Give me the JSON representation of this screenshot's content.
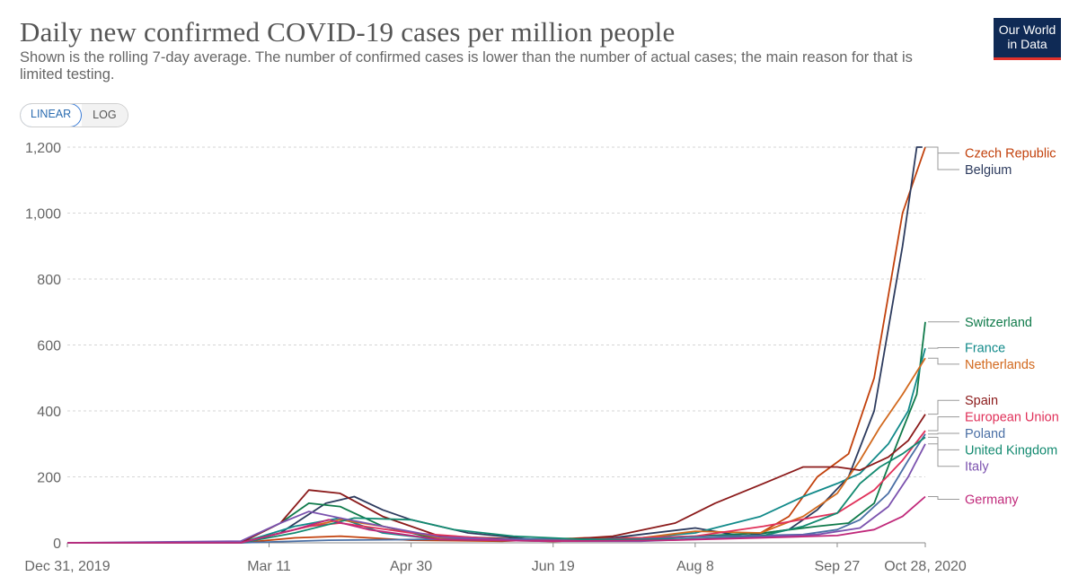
{
  "header": {
    "title": "Daily new confirmed COVID-19 cases per million people",
    "subtitle": "Shown is the rolling 7-day average. The number of confirmed cases is lower than the number of actual cases; the main reason for that is limited testing.",
    "logo_line1": "Our World",
    "logo_line2": "in Data"
  },
  "controls": {
    "linear_label": "LINEAR",
    "log_label": "LOG",
    "active": "LINEAR"
  },
  "chart_data": {
    "type": "line",
    "title": "Daily new confirmed COVID-19 cases per million people",
    "xlabel": "",
    "ylabel": "",
    "scale": "linear",
    "grid": "horizontal dashed",
    "legend_placement": "right, line-end labels",
    "ylim": [
      0,
      1200
    ],
    "xlim": [
      "2019-12-31",
      "2020-10-28"
    ],
    "y_ticks": [
      0,
      200,
      400,
      600,
      800,
      1000,
      1200
    ],
    "y_tick_labels": [
      "0",
      "200",
      "400",
      "600",
      "800",
      "1,000",
      "1,200"
    ],
    "x_ticks": [
      "2019-12-31",
      "2020-03-11",
      "2020-04-30",
      "2020-06-19",
      "2020-08-08",
      "2020-09-27",
      "2020-10-28"
    ],
    "x_tick_labels": [
      "Dec 31, 2019",
      "Mar 11",
      "Apr 30",
      "Jun 19",
      "Aug 8",
      "Sep 27",
      "Oct 28, 2020"
    ],
    "series": [
      {
        "name": "Czech Republic",
        "color": "#c2410c",
        "points": [
          [
            "2019-12-31",
            0
          ],
          [
            "2020-03-01",
            0
          ],
          [
            "2020-03-20",
            15
          ],
          [
            "2020-04-05",
            20
          ],
          [
            "2020-04-30",
            8
          ],
          [
            "2020-06-01",
            5
          ],
          [
            "2020-06-30",
            15
          ],
          [
            "2020-07-31",
            15
          ],
          [
            "2020-08-31",
            30
          ],
          [
            "2020-09-10",
            80
          ],
          [
            "2020-09-20",
            200
          ],
          [
            "2020-10-01",
            270
          ],
          [
            "2020-10-10",
            500
          ],
          [
            "2020-10-20",
            1000
          ],
          [
            "2020-10-28",
            1200
          ]
        ]
      },
      {
        "name": "Belgium",
        "color": "#2d3b5e",
        "points": [
          [
            "2019-12-31",
            0
          ],
          [
            "2020-03-01",
            0
          ],
          [
            "2020-03-15",
            30
          ],
          [
            "2020-03-31",
            120
          ],
          [
            "2020-04-10",
            140
          ],
          [
            "2020-04-20",
            100
          ],
          [
            "2020-04-30",
            70
          ],
          [
            "2020-05-20",
            30
          ],
          [
            "2020-06-15",
            8
          ],
          [
            "2020-07-05",
            10
          ],
          [
            "2020-08-08",
            45
          ],
          [
            "2020-08-25",
            20
          ],
          [
            "2020-09-10",
            40
          ],
          [
            "2020-09-20",
            100
          ],
          [
            "2020-10-01",
            200
          ],
          [
            "2020-10-10",
            400
          ],
          [
            "2020-10-20",
            900
          ],
          [
            "2020-10-25",
            1200
          ],
          [
            "2020-10-27",
            1200
          ]
        ]
      },
      {
        "name": "Switzerland",
        "color": "#0f7a4a",
        "points": [
          [
            "2019-12-31",
            0
          ],
          [
            "2020-03-01",
            0
          ],
          [
            "2020-03-15",
            60
          ],
          [
            "2020-03-25",
            120
          ],
          [
            "2020-04-05",
            110
          ],
          [
            "2020-04-20",
            50
          ],
          [
            "2020-05-10",
            10
          ],
          [
            "2020-06-19",
            5
          ],
          [
            "2020-07-15",
            12
          ],
          [
            "2020-08-08",
            20
          ],
          [
            "2020-09-01",
            30
          ],
          [
            "2020-09-20",
            50
          ],
          [
            "2020-10-01",
            60
          ],
          [
            "2020-10-10",
            120
          ],
          [
            "2020-10-18",
            300
          ],
          [
            "2020-10-25",
            450
          ],
          [
            "2020-10-28",
            670
          ]
        ]
      },
      {
        "name": "France",
        "color": "#128a8a",
        "points": [
          [
            "2019-12-31",
            0
          ],
          [
            "2020-03-01",
            0
          ],
          [
            "2020-03-20",
            50
          ],
          [
            "2020-04-05",
            75
          ],
          [
            "2020-04-20",
            30
          ],
          [
            "2020-05-10",
            10
          ],
          [
            "2020-06-19",
            8
          ],
          [
            "2020-07-20",
            15
          ],
          [
            "2020-08-08",
            30
          ],
          [
            "2020-08-31",
            80
          ],
          [
            "2020-09-15",
            140
          ],
          [
            "2020-09-27",
            180
          ],
          [
            "2020-10-05",
            210
          ],
          [
            "2020-10-15",
            300
          ],
          [
            "2020-10-22",
            400
          ],
          [
            "2020-10-28",
            590
          ]
        ]
      },
      {
        "name": "Netherlands",
        "color": "#d2691e",
        "points": [
          [
            "2019-12-31",
            0
          ],
          [
            "2020-03-01",
            0
          ],
          [
            "2020-03-20",
            40
          ],
          [
            "2020-04-05",
            70
          ],
          [
            "2020-04-20",
            50
          ],
          [
            "2020-05-10",
            15
          ],
          [
            "2020-06-19",
            4
          ],
          [
            "2020-07-20",
            15
          ],
          [
            "2020-08-08",
            35
          ],
          [
            "2020-08-31",
            30
          ],
          [
            "2020-09-15",
            80
          ],
          [
            "2020-09-27",
            150
          ],
          [
            "2020-10-05",
            250
          ],
          [
            "2020-10-12",
            350
          ],
          [
            "2020-10-20",
            450
          ],
          [
            "2020-10-28",
            560
          ]
        ]
      },
      {
        "name": "Spain",
        "color": "#8b1a1a",
        "points": [
          [
            "2019-12-31",
            0
          ],
          [
            "2020-03-01",
            0
          ],
          [
            "2020-03-15",
            60
          ],
          [
            "2020-03-25",
            160
          ],
          [
            "2020-04-05",
            150
          ],
          [
            "2020-04-20",
            80
          ],
          [
            "2020-05-10",
            20
          ],
          [
            "2020-06-19",
            8
          ],
          [
            "2020-07-10",
            20
          ],
          [
            "2020-08-01",
            60
          ],
          [
            "2020-08-15",
            120
          ],
          [
            "2020-09-01",
            180
          ],
          [
            "2020-09-15",
            230
          ],
          [
            "2020-09-27",
            230
          ],
          [
            "2020-10-05",
            220
          ],
          [
            "2020-10-15",
            260
          ],
          [
            "2020-10-22",
            310
          ],
          [
            "2020-10-28",
            390
          ]
        ]
      },
      {
        "name": "European Union",
        "color": "#e0315a",
        "points": [
          [
            "2019-12-31",
            0
          ],
          [
            "2020-03-01",
            0
          ],
          [
            "2020-03-25",
            50
          ],
          [
            "2020-04-05",
            60
          ],
          [
            "2020-04-30",
            30
          ],
          [
            "2020-06-01",
            10
          ],
          [
            "2020-07-01",
            10
          ],
          [
            "2020-08-08",
            20
          ],
          [
            "2020-09-01",
            50
          ],
          [
            "2020-09-27",
            90
          ],
          [
            "2020-10-10",
            160
          ],
          [
            "2020-10-20",
            250
          ],
          [
            "2020-10-28",
            340
          ]
        ]
      },
      {
        "name": "Poland",
        "color": "#4a6fa5",
        "points": [
          [
            "2019-12-31",
            0
          ],
          [
            "2020-03-01",
            0
          ],
          [
            "2020-04-01",
            8
          ],
          [
            "2020-05-01",
            10
          ],
          [
            "2020-06-10",
            12
          ],
          [
            "2020-07-15",
            10
          ],
          [
            "2020-08-15",
            20
          ],
          [
            "2020-09-15",
            25
          ],
          [
            "2020-09-27",
            40
          ],
          [
            "2020-10-05",
            70
          ],
          [
            "2020-10-15",
            150
          ],
          [
            "2020-10-22",
            250
          ],
          [
            "2020-10-28",
            330
          ]
        ]
      },
      {
        "name": "United Kingdom",
        "color": "#138a70",
        "points": [
          [
            "2019-12-31",
            0
          ],
          [
            "2020-03-01",
            0
          ],
          [
            "2020-03-20",
            30
          ],
          [
            "2020-04-10",
            75
          ],
          [
            "2020-04-30",
            70
          ],
          [
            "2020-05-15",
            40
          ],
          [
            "2020-06-05",
            20
          ],
          [
            "2020-07-01",
            10
          ],
          [
            "2020-08-01",
            10
          ],
          [
            "2020-08-31",
            20
          ],
          [
            "2020-09-15",
            50
          ],
          [
            "2020-09-27",
            90
          ],
          [
            "2020-10-05",
            180
          ],
          [
            "2020-10-12",
            230
          ],
          [
            "2020-10-20",
            270
          ],
          [
            "2020-10-28",
            320
          ]
        ]
      },
      {
        "name": "Italy",
        "color": "#7b52ae",
        "points": [
          [
            "2019-12-31",
            0
          ],
          [
            "2020-03-01",
            5
          ],
          [
            "2020-03-15",
            60
          ],
          [
            "2020-03-25",
            95
          ],
          [
            "2020-04-05",
            75
          ],
          [
            "2020-04-20",
            50
          ],
          [
            "2020-05-10",
            18
          ],
          [
            "2020-06-15",
            5
          ],
          [
            "2020-07-20",
            5
          ],
          [
            "2020-08-20",
            15
          ],
          [
            "2020-09-20",
            25
          ],
          [
            "2020-10-05",
            45
          ],
          [
            "2020-10-15",
            110
          ],
          [
            "2020-10-22",
            200
          ],
          [
            "2020-10-28",
            300
          ]
        ]
      },
      {
        "name": "Germany",
        "color": "#c0287a",
        "points": [
          [
            "2019-12-31",
            0
          ],
          [
            "2020-03-01",
            0
          ],
          [
            "2020-03-20",
            40
          ],
          [
            "2020-04-01",
            70
          ],
          [
            "2020-04-15",
            40
          ],
          [
            "2020-05-10",
            10
          ],
          [
            "2020-06-19",
            5
          ],
          [
            "2020-07-31",
            8
          ],
          [
            "2020-08-31",
            15
          ],
          [
            "2020-09-27",
            22
          ],
          [
            "2020-10-10",
            40
          ],
          [
            "2020-10-20",
            80
          ],
          [
            "2020-10-28",
            140
          ]
        ]
      }
    ],
    "end_labels": [
      {
        "name": "Czech Republic",
        "color": "#c2410c",
        "label_y": 1182,
        "line_y": 1200
      },
      {
        "name": "Belgium",
        "color": "#2d3b5e",
        "label_y": 1132,
        "line_y": 1200
      },
      {
        "name": "Switzerland",
        "color": "#0f7a4a",
        "label_y": 670,
        "line_y": 670
      },
      {
        "name": "France",
        "color": "#128a8a",
        "label_y": 592,
        "line_y": 590
      },
      {
        "name": "Netherlands",
        "color": "#d2691e",
        "label_y": 542,
        "line_y": 560
      },
      {
        "name": "Spain",
        "color": "#8b1a1a",
        "label_y": 432,
        "line_y": 390
      },
      {
        "name": "European Union",
        "color": "#e0315a",
        "label_y": 382,
        "line_y": 340
      },
      {
        "name": "Poland",
        "color": "#4a6fa5",
        "label_y": 332,
        "line_y": 330
      },
      {
        "name": "United Kingdom",
        "color": "#138a70",
        "label_y": 282,
        "line_y": 320
      },
      {
        "name": "Italy",
        "color": "#7b52ae",
        "label_y": 232,
        "line_y": 300
      },
      {
        "name": "Germany",
        "color": "#c0287a",
        "label_y": 132,
        "line_y": 140
      }
    ]
  }
}
